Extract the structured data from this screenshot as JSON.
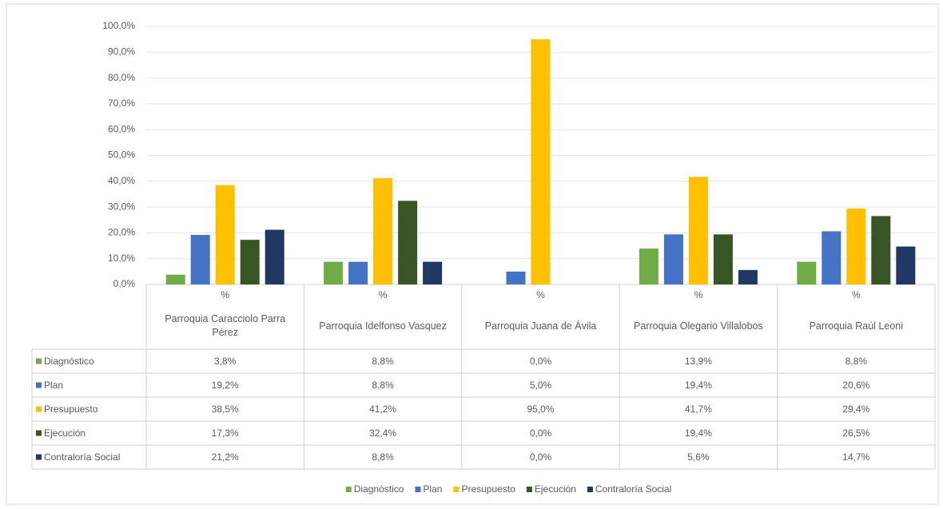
{
  "chart_data": {
    "type": "bar",
    "categories": [
      "Parroquia Caracciolo Parra Pérez",
      "Parroquia Idelfonso Vasquez",
      "Parroquia Juana de Ávila",
      "Parroquia Olegario Villalobos",
      "Parroquia Raúl Leoni"
    ],
    "subcategories": [
      "%",
      "%",
      "%",
      "%",
      "%"
    ],
    "series": [
      {
        "name": "Diagnóstico",
        "color": "#70ad47",
        "values": [
          3.8,
          8.8,
          0.0,
          13.9,
          8.8
        ],
        "value_labels": [
          "3,8%",
          "8,8%",
          "0,0%",
          "13,9%",
          "8,8%"
        ]
      },
      {
        "name": "Plan",
        "color": "#4472c4",
        "values": [
          19.2,
          8.8,
          5.0,
          19.4,
          20.6
        ],
        "value_labels": [
          "19,2%",
          "8,8%",
          "5,0%",
          "19,4%",
          "20,6%"
        ]
      },
      {
        "name": "Presupuesto",
        "color": "#ffc000",
        "values": [
          38.5,
          41.2,
          95.0,
          41.7,
          29.4
        ],
        "value_labels": [
          "38,5%",
          "41,2%",
          "95,0%",
          "41,7%",
          "29,4%"
        ]
      },
      {
        "name": "Ejecución",
        "color": "#375623",
        "values": [
          17.3,
          32.4,
          0.0,
          19.4,
          26.5
        ],
        "value_labels": [
          "17,3%",
          "32,4%",
          "0,0%",
          "19,4%",
          "26,5%"
        ]
      },
      {
        "name": "Contraloría Social",
        "color": "#203864",
        "values": [
          21.2,
          8.8,
          0.0,
          5.6,
          14.7
        ],
        "value_labels": [
          "21,2%",
          "8,8%",
          "0,0%",
          "5,6%",
          "14,7%"
        ]
      }
    ],
    "ylim": [
      0,
      100
    ],
    "yticks": [
      {
        "value": 0,
        "label": "0,0%"
      },
      {
        "value": 10,
        "label": "10,0%"
      },
      {
        "value": 20,
        "label": "20,0%"
      },
      {
        "value": 30,
        "label": "30,0%"
      },
      {
        "value": 40,
        "label": "40,0%"
      },
      {
        "value": 50,
        "label": "50,0%"
      },
      {
        "value": 60,
        "label": "60,0%"
      },
      {
        "value": 70,
        "label": "70,0%"
      },
      {
        "value": 80,
        "label": "80,0%"
      },
      {
        "value": 90,
        "label": "90,0%"
      },
      {
        "value": 100,
        "label": "100,0%"
      }
    ],
    "grid": true,
    "legend": "bottom"
  }
}
